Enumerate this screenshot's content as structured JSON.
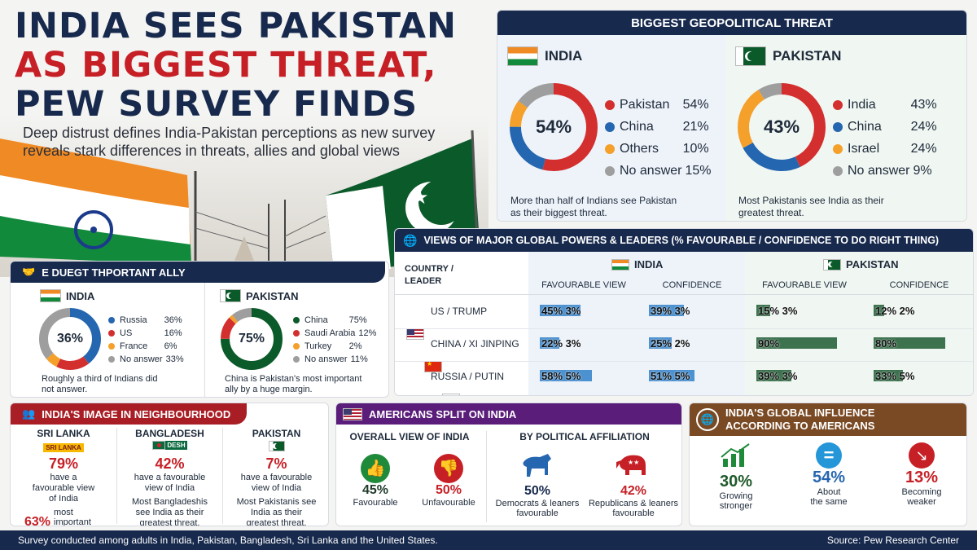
{
  "headline": {
    "line1": "INDIA SEES PAKISTAN",
    "line2": "AS BIGGEST THREAT,",
    "line3": "PEW SURVEY FINDS",
    "subtitle": "Deep distrust defines India-Pakistan perceptions as new survey reveals stark differences in threats, allies and global views"
  },
  "threat": {
    "title": "BIGGEST GEOPOLITICAL THREAT",
    "india": {
      "name": "INDIA",
      "center": "54%",
      "items": [
        {
          "label": "Pakistan",
          "value": "54%",
          "num": 54,
          "color": "#d32f2f"
        },
        {
          "label": "China",
          "value": "21%",
          "num": 21,
          "color": "#2566b0"
        },
        {
          "label": "Others",
          "value": "10%",
          "num": 10,
          "color": "#f4a02a"
        },
        {
          "label": "No answer",
          "value": "15%",
          "num": 15,
          "color": "#9e9e9e"
        }
      ],
      "note": "More than half of Indians see Pakistan as their biggest threat."
    },
    "pakistan": {
      "name": "PAKISTAN",
      "center": "43%",
      "items": [
        {
          "label": "India",
          "value": "43%",
          "num": 43,
          "color": "#d32f2f"
        },
        {
          "label": "China",
          "value": "24%",
          "num": 24,
          "color": "#2566b0"
        },
        {
          "label": "Israel",
          "value": "24%",
          "num": 24,
          "color": "#f4a02a"
        },
        {
          "label": "No answer",
          "value": "9%",
          "num": 9,
          "color": "#9e9e9e"
        }
      ],
      "note": "Most Pakistanis see India as their greatest threat."
    }
  },
  "ally": {
    "title": "E DUEGT THPORTANT ALLY",
    "india": {
      "name": "INDIA",
      "center": "36%",
      "items": [
        {
          "label": "Russia",
          "value": "36%",
          "num": 36,
          "color": "#2566b0"
        },
        {
          "label": "US",
          "value": "16%",
          "num": 16,
          "color": "#d32f2f"
        },
        {
          "label": "France",
          "value": "6%",
          "num": 6,
          "color": "#f4a02a"
        },
        {
          "label": "No answer",
          "value": "33%",
          "num": 33,
          "color": "#9e9e9e"
        }
      ],
      "note": "Roughly a third of Indians did not answer."
    },
    "pakistan": {
      "name": "PAKISTAN",
      "center": "75%",
      "items": [
        {
          "label": "China",
          "value": "75%",
          "num": 75,
          "color": "#0b5a2a"
        },
        {
          "label": "Saudi Arabia",
          "value": "12%",
          "num": 12,
          "color": "#d32f2f"
        },
        {
          "label": "Turkey",
          "value": "2%",
          "num": 2,
          "color": "#f4a02a"
        },
        {
          "label": "No answer",
          "value": "11%",
          "num": 11,
          "color": "#9e9e9e"
        }
      ],
      "note": "China is Pakistan's most important ally by a huge margin."
    }
  },
  "views": {
    "title": "VIEWS OF MAJOR GLOBAL POWERS & LEADERS (% FAVOURABLE / CONFIDENCE TO DO RIGHT THING)",
    "col_header": "COUNTRY / LEADER",
    "india": "INDIA",
    "pakistan": "PAKISTAN",
    "fav": "FAVOURABLE VIEW",
    "conf": "CONFIDENCE",
    "rows": [
      {
        "label": "US / TRUMP",
        "flag": "us",
        "in_fav": "45% 3%",
        "in_fav_n": 45,
        "in_conf": "39% 3%",
        "in_conf_n": 39,
        "pk_fav": "15% 3%",
        "pk_fav_n": 15,
        "pk_conf": "12% 2%",
        "pk_conf_n": 12
      },
      {
        "label": "CHINA / XI JINPING",
        "flag": "cn",
        "in_fav": "22% 3%",
        "in_fav_n": 22,
        "in_conf": "25% 2%",
        "in_conf_n": 25,
        "pk_fav": "90%",
        "pk_fav_n": 90,
        "pk_conf": "80%",
        "pk_conf_n": 80
      },
      {
        "label": "RUSSIA / PUTIN",
        "flag": "ru",
        "in_fav": "58% 5%",
        "in_fav_n": 58,
        "in_conf": "51% 5%",
        "in_conf_n": 51,
        "pk_fav": "39% 3%",
        "pk_fav_n": 39,
        "pk_conf": "33% 5%",
        "pk_conf_n": 33
      }
    ]
  },
  "neighbourhood": {
    "title": "INDIA'S IMAGE IN NEIGHBOURHOOD",
    "items": [
      {
        "name": "SRI LANKA",
        "flagtext": "SRI LANKA",
        "pct": "79%",
        "text": "have a favourable view of India",
        "extra_pct": "63%",
        "extra": "most important ally"
      },
      {
        "name": "BANGLADESH",
        "flagtext": "DESH",
        "pct": "42%",
        "text": "have a favourable view of India",
        "extra": "Most Bangladeshis see India as their greatest threat."
      },
      {
        "name": "PAKISTAN",
        "pct": "7%",
        "text": "have a favourable view of India",
        "extra": "Most Pakistanis see India as their greatest threat."
      }
    ]
  },
  "americans": {
    "title": "AMERICANS SPLIT ON INDIA",
    "overall_label": "OVERALL VIEW OF INDIA",
    "political_label": "BY POLITICAL AFFILIATION",
    "items": [
      {
        "pct": "45%",
        "label": "Favourable",
        "color": "#1f8a3a"
      },
      {
        "pct": "50%",
        "label": "Unfavourable",
        "color": "#c62026"
      },
      {
        "pct": "50%",
        "label": "Democrats & leaners favourable",
        "color": "#2566b0"
      },
      {
        "pct": "42%",
        "label": "Republicans & leaners favourable",
        "color": "#c62026"
      }
    ]
  },
  "influence": {
    "title": "INDIA'S GLOBAL INFLUENCE ACCORDING TO AMERICANS",
    "items": [
      {
        "pct": "30%",
        "label": "Growing stronger",
        "color": "#1f8a3a"
      },
      {
        "pct": "54%",
        "label": "About the same",
        "color": "#2596d8"
      },
      {
        "pct": "13%",
        "label": "Becoming weaker",
        "color": "#c62026"
      }
    ]
  },
  "footer": {
    "left": "Survey conducted among adults in India, Pakistan, Bangladesh, Sri Lanka and the United States.",
    "right": "Source: Pew Research Center"
  }
}
